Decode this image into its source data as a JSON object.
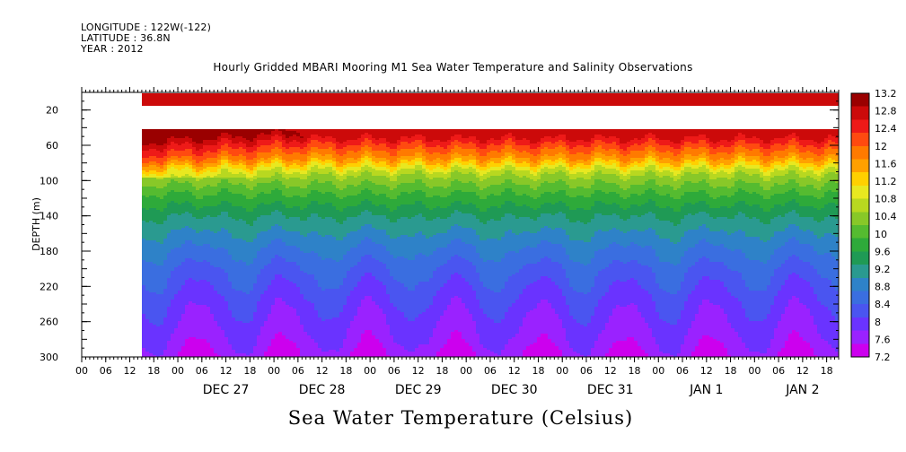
{
  "header": {
    "longitude": "LONGITUDE : 122W(-122)",
    "latitude": "LATITUDE : 36.8N",
    "year": "YEAR : 2012"
  },
  "plot_title": "Hourly Gridded MBARI Mooring M1 Sea Water Temperature and Salinity Observations",
  "bottom_title": "Sea Water Temperature (Celsius)",
  "colors": {
    "palette": [
      "#cc00ee",
      "#9a22ff",
      "#6a33ff",
      "#4a55f0",
      "#3a6ee0",
      "#2e82c8",
      "#2a9a90",
      "#1f9a55",
      "#2eaa3a",
      "#55bb30",
      "#88c828",
      "#b8d820",
      "#e8e820",
      "#ffd000",
      "#ffa000",
      "#ff7a00",
      "#ff4a10",
      "#ee1a18",
      "#cc0a0a",
      "#9a0000"
    ]
  },
  "chart_data": {
    "type": "heatmap",
    "title": "Hourly Gridded MBARI Mooring M1 Sea Water Temperature and Salinity Observations",
    "xlabel": "",
    "ylabel": "DEPTH (m)",
    "x_start": "2012-12-26 00:00",
    "x_end": "2013-01-02 21:00",
    "x_tick_labels": [
      "00",
      "06",
      "12",
      "18",
      "00",
      "06",
      "12",
      "18",
      "00",
      "06",
      "12",
      "18",
      "00",
      "06",
      "12",
      "18",
      "00",
      "06",
      "12",
      "18",
      "00",
      "06",
      "12",
      "18",
      "00",
      "06",
      "12",
      "18",
      "00",
      "06",
      "12",
      "18"
    ],
    "x_date_labels": [
      "DEC 27",
      "DEC 28",
      "DEC 29",
      "DEC 30",
      "DEC 31",
      "JAN  1",
      "JAN  2"
    ],
    "ylim": [
      300,
      0
    ],
    "y_ticks": [
      20,
      60,
      100,
      140,
      180,
      220,
      260,
      300
    ],
    "colorbar": {
      "unit": "Celsius",
      "min": 7.2,
      "max": 13.2,
      "labels": [
        "13.2",
        "12.8",
        "12.4",
        "12",
        "11.6",
        "11.2",
        "10.8",
        "10.4",
        "10",
        "9.6",
        "9.2",
        "8.8",
        "8.4",
        "8",
        "7.6",
        "7.2"
      ]
    },
    "data_start": "2012-12-26 15:00",
    "missing_depth_band": [
      15,
      40
    ],
    "depth_profile_C": [
      {
        "depth": 10,
        "temp": 12.6
      },
      {
        "depth": 45,
        "temp": 12.9
      },
      {
        "depth": 60,
        "temp": 12.2
      },
      {
        "depth": 75,
        "temp": 11.6
      },
      {
        "depth": 90,
        "temp": 10.6
      },
      {
        "depth": 110,
        "temp": 10.0
      },
      {
        "depth": 140,
        "temp": 9.3
      },
      {
        "depth": 170,
        "temp": 8.8
      },
      {
        "depth": 200,
        "temp": 8.4
      },
      {
        "depth": 240,
        "temp": 8.0
      },
      {
        "depth": 280,
        "temp": 7.7
      },
      {
        "depth": 300,
        "temp": 7.5
      }
    ]
  }
}
